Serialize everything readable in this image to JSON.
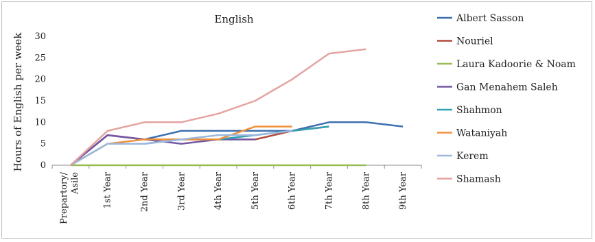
{
  "chart_data": {
    "type": "line",
    "title": "English",
    "xlabel": "",
    "ylabel": "Hours of English per week",
    "categories": [
      "Prepartory/ Asile",
      "1st Year",
      "2nd Year",
      "3rd Year",
      "4th Year",
      "5th Year",
      "6th Year",
      "7th Year",
      "8th Year",
      "9th Year"
    ],
    "ylim": [
      0,
      30
    ],
    "yticks": [
      0,
      5,
      10,
      15,
      20,
      25,
      30
    ],
    "grid": false,
    "legend_position": "right",
    "series": [
      {
        "name": "Albert Sasson",
        "color": "#3d6fb0",
        "values": [
          0,
          7,
          6,
          8,
          8,
          8,
          8,
          10,
          10,
          9
        ]
      },
      {
        "name": "Nouriel",
        "color": "#b24a3e",
        "values": [
          0,
          7,
          6,
          6,
          6,
          6,
          8,
          9,
          null,
          null
        ]
      },
      {
        "name": "Laura Kadoorie & Noam",
        "color": "#9bbb59",
        "values": [
          0,
          0,
          0,
          0,
          0,
          0,
          0,
          0,
          0,
          null
        ]
      },
      {
        "name": "Gan Menahem Saleh",
        "color": "#7357a4",
        "values": [
          0,
          7,
          6,
          5,
          6,
          6,
          null,
          null,
          null,
          null
        ]
      },
      {
        "name": "Shahmon",
        "color": "#31a2b3",
        "values": [
          0,
          5,
          5,
          6,
          6,
          7,
          8,
          9,
          null,
          null
        ]
      },
      {
        "name": "Wataniyah",
        "color": "#f0913a",
        "values": [
          0,
          5,
          6,
          6,
          6,
          9,
          9,
          null,
          null,
          null
        ]
      },
      {
        "name": "Kerem",
        "color": "#9bb7dc",
        "values": [
          0,
          5,
          5,
          6,
          7,
          7,
          8,
          null,
          null,
          null
        ]
      },
      {
        "name": "Shamash",
        "color": "#e4a3a0",
        "values": [
          0,
          8,
          10,
          10,
          12,
          15,
          20,
          26,
          27,
          null
        ]
      }
    ]
  }
}
